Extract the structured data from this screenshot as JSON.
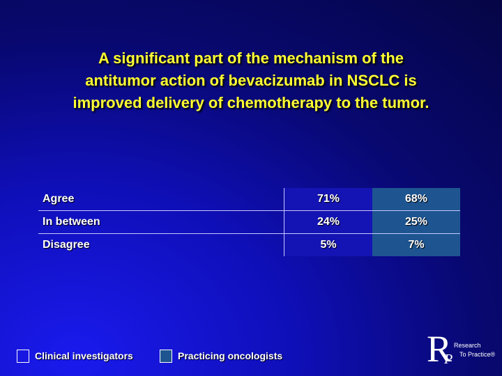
{
  "title": [
    "A significant part of the mechanism of the",
    "antitumor action of bevacizumab in NSCLC is",
    "improved delivery of chemotherapy to the tumor."
  ],
  "table": {
    "rows": [
      [
        "Agree",
        "71%",
        "68%"
      ],
      [
        "In between",
        "24%",
        "25%"
      ],
      [
        "Disagree",
        "5%",
        "7%"
      ]
    ]
  },
  "legend": [
    "Clinical investigators",
    "Practicing oncologists"
  ],
  "logo": {
    "letter_r": "R",
    "letter_p": "P",
    "line1": "Research",
    "line2": "To Practice®"
  }
}
